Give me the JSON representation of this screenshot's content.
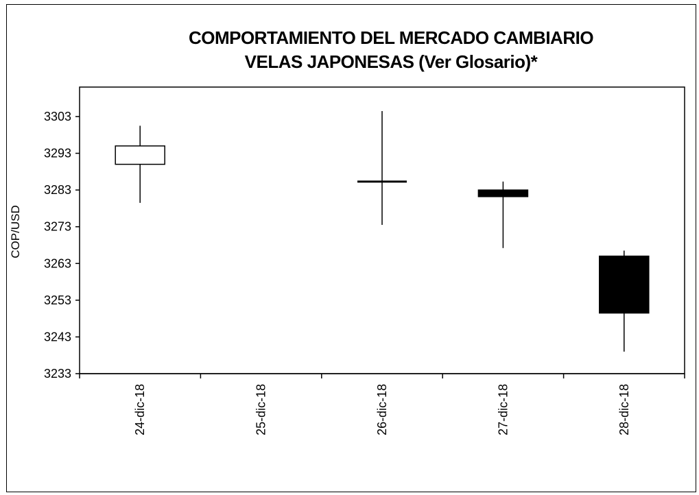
{
  "chart_data": {
    "type": "candlestick",
    "title_lines": [
      "COMPORTAMIENTO DEL MERCADO CAMBIARIO",
      "VELAS JAPONESAS (Ver Glosario)*"
    ],
    "ylabel": "COP/USD",
    "xlabel": "",
    "ylim": [
      3233,
      3303
    ],
    "yticks": [
      3303,
      3293,
      3283,
      3273,
      3263,
      3253,
      3243,
      3233
    ],
    "categories": [
      "24-dic-18",
      "25-dic-18",
      "26-dic-18",
      "27-dic-18",
      "28-dic-18"
    ],
    "candles": [
      {
        "date": "24-dic-18",
        "open": 3290.0,
        "high": 3300.5,
        "low": 3279.5,
        "close": 3295.0
      },
      {
        "date": "25-dic-18",
        "open": null,
        "high": null,
        "low": null,
        "close": null
      },
      {
        "date": "26-dic-18",
        "open": 3285.3,
        "high": 3304.5,
        "low": 3273.5,
        "close": 3285.3
      },
      {
        "date": "27-dic-18",
        "open": 3283.0,
        "high": 3285.3,
        "low": 3267.2,
        "close": 3281.2
      },
      {
        "date": "28-dic-18",
        "open": 3265.0,
        "high": 3266.5,
        "low": 3239.0,
        "close": 3249.5
      }
    ],
    "colors": {
      "up_fill": "#ffffff",
      "down_fill": "#000000",
      "stroke": "#000000"
    },
    "grid": false,
    "legend": "none"
  }
}
